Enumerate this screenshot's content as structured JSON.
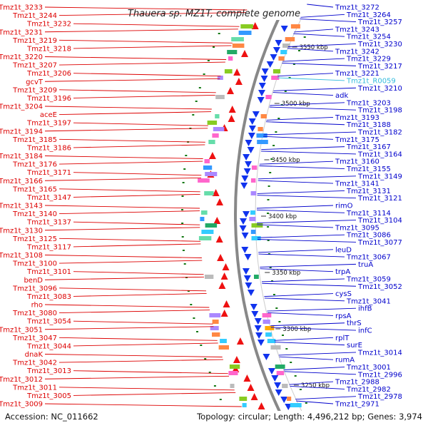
{
  "title": "Thauera sp. MZ1T, complete genome",
  "accession": "Accession: NC_011662",
  "summary": "Topology: circular; Length: 4,496,212 bp; Genes: 3,974",
  "colors": {
    "forward_strand": "#ee1111",
    "reverse_strand": "#1133ee",
    "label_left": "#dd0000",
    "label_right": "#0000cc",
    "rna_label": "#33bbdd",
    "backbone": "#888888",
    "tick": "#117711"
  },
  "scale_marks": [
    "3550 kbp",
    "3500 kbp",
    "3450 kbp",
    "3400 kbp",
    "3350 kbp",
    "3300 kbp",
    "3250 kbp"
  ],
  "left_labels": [
    "Tmz1t_3233",
    "Tmz1t_3244",
    "Tmz1t_3232",
    "Tmz1t_3231",
    "Tmz1t_3219",
    "Tmz1t_3218",
    "Tmz1t_3220",
    "Tmz1t_3207",
    "Tmz1t_3206",
    "gcvT",
    "Tmz1t_3209",
    "Tmz1t_3196",
    "Tmz1t_3204",
    "aceE",
    "Tmz1t_3197",
    "Tmz1t_3194",
    "Tmz1t_3185",
    "Tmz1t_3186",
    "Tmz1t_3184",
    "Tmz1t_3176",
    "Tmz1t_3171",
    "Tmz1t_3166",
    "Tmz1t_3165",
    "Tmz1t_3147",
    "Tmz1t_3143",
    "Tmz1t_3140",
    "Tmz1t_3137",
    "Tmz1t_3130",
    "Tmz1t_3125",
    "Tmz1t_3117",
    "Tmz1t_3108",
    "Tmz1t_3100",
    "Tmz1t_3101",
    "benD",
    "Tmz1t_3096",
    "Tmz1t_3083",
    "rho",
    "Tmz1t_3080",
    "Tmz1t_3054",
    "Tmz1t_3051",
    "Tmz1t_3047",
    "Tmz1t_3044",
    "dnaK",
    "Tmz1t_3042",
    "Tmz1t_3013",
    "Tmz1t_3012",
    "Tmz1t_3011",
    "Tmz1t_3005",
    "Tmz1t_3009"
  ],
  "right_labels": [
    "Tmz1t_3272",
    "Tmz1t_3264",
    "Tmz1t_3257",
    "Tmz1t_3243",
    "Tmz1t_3254",
    "Tmz1t_3230",
    "Tmz1t_3242",
    "Tmz1t_3229",
    "Tmz1t_3217",
    "Tmz1t_3221",
    "Tmz1t_R0059",
    "Tmz1t_3210",
    "adk",
    "Tmz1t_3203",
    "Tmz1t_3198",
    "Tmz1t_3193",
    "Tmz1t_3188",
    "Tmz1t_3182",
    "Tmz1t_3175",
    "Tmz1t_3167",
    "Tmz1t_3164",
    "Tmz1t_3160",
    "Tmz1t_3155",
    "Tmz1t_3149",
    "Tmz1t_3141",
    "Tmz1t_3131",
    "Tmz1t_3121",
    "rimO",
    "Tmz1t_3114",
    "Tmz1t_3104",
    "Tmz1t_3095",
    "Tmz1t_3086",
    "Tmz1t_3077",
    "leuD",
    "Tmz1t_3067",
    "truA",
    "trpA",
    "Tmz1t_3059",
    "Tmz1t_3052",
    "cysS",
    "Tmz1t_3041",
    "ihfB",
    "rpsA",
    "thrS",
    "infC",
    "rplT",
    "surE",
    "Tmz1t_3014",
    "rumA",
    "Tmz1t_3001",
    "Tmz1t_2996",
    "Tmz1t_2988",
    "Tmz1t_2982",
    "Tmz1t_2978",
    "Tmz1t_2971"
  ]
}
